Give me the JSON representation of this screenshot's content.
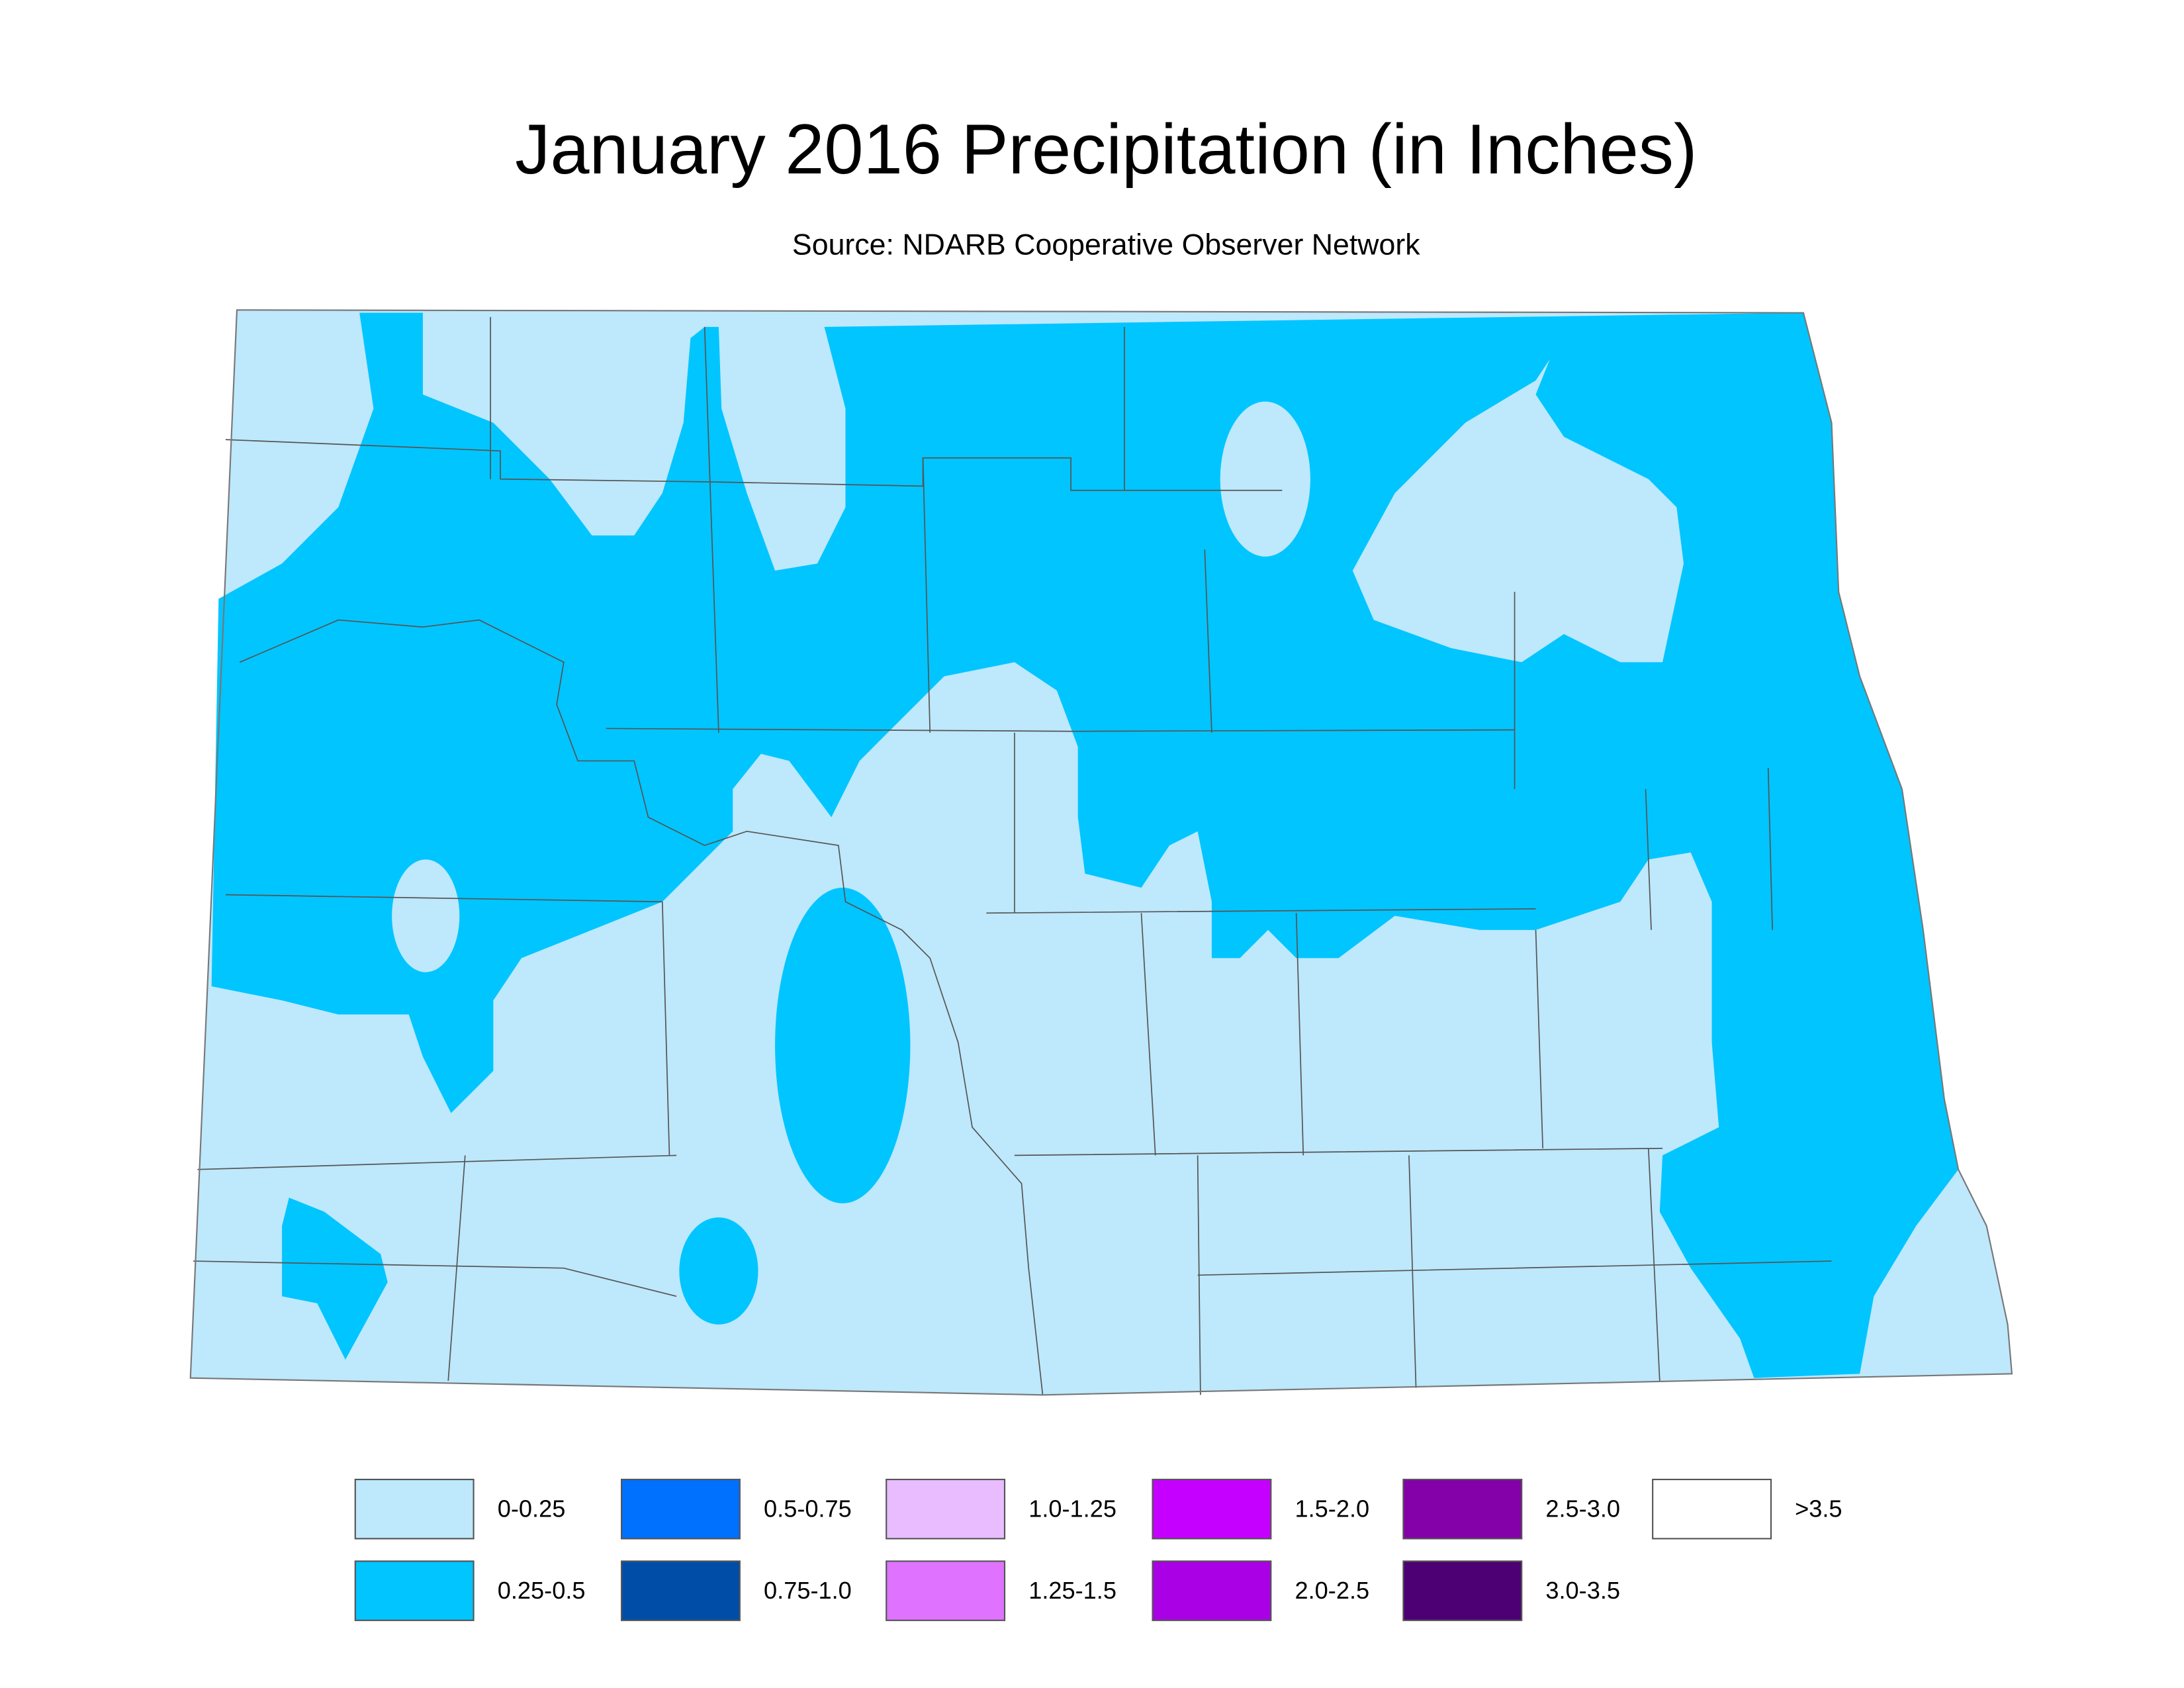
{
  "title": "January 2016 Precipitation (in Inches)",
  "subtitle": "Source: NDARB Cooperative Observer Network",
  "legend": [
    {
      "label": "0-0.25",
      "color": "#bee8fc"
    },
    {
      "label": "0.25-0.5",
      "color": "#00c5ff"
    },
    {
      "label": "0.5-0.75",
      "color": "#0070ff"
    },
    {
      "label": "0.75-1.0",
      "color": "#004da8"
    },
    {
      "label": "1.0-1.25",
      "color": "#e8bcff"
    },
    {
      "label": "1.25-1.5",
      "color": "#df73ff"
    },
    {
      "label": "1.5-2.0",
      "color": "#c500ff"
    },
    {
      "label": "2.0-2.5",
      "color": "#a900e6"
    },
    {
      "label": "2.5-3.0",
      "color": "#8400a8"
    },
    {
      "label": "3.0-3.5",
      "color": "#4c0073"
    },
    {
      "label": ">3.5",
      "color": "#ffffff"
    }
  ]
}
